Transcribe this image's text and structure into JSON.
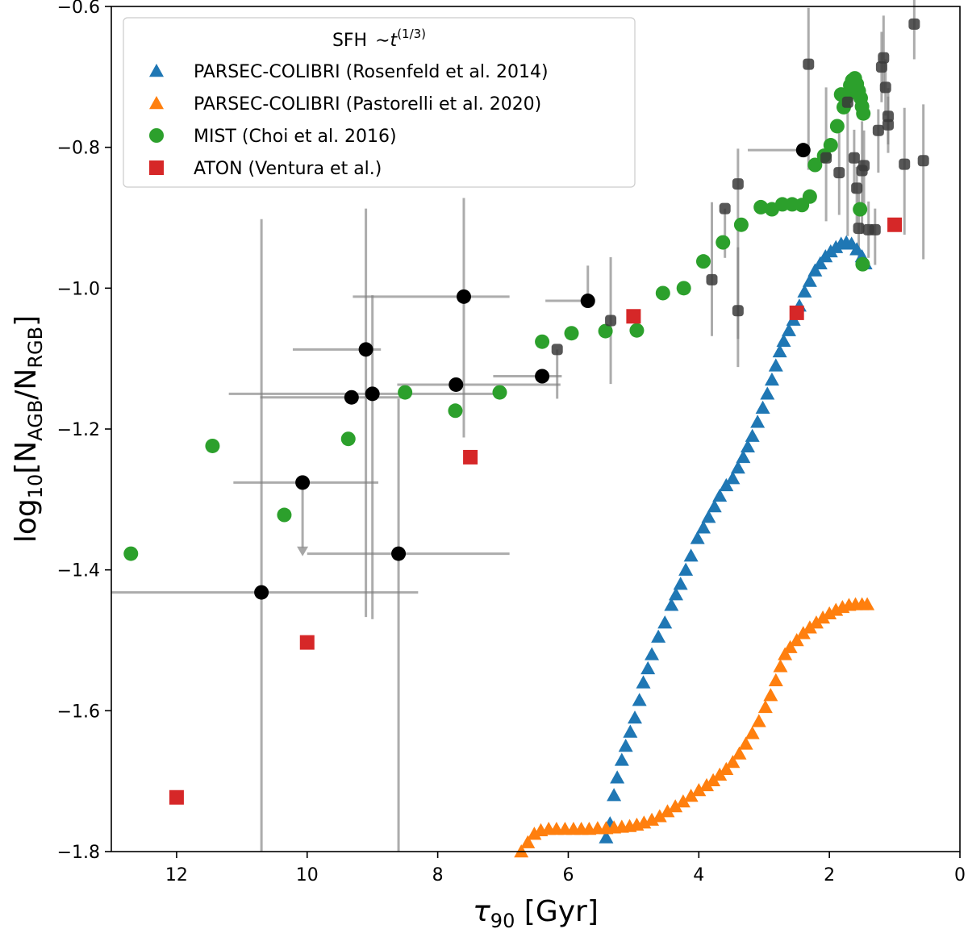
{
  "chart_data": {
    "type": "scatter",
    "title": "",
    "xlabel": "τ90 [Gyr]",
    "xlabel_main": "τ",
    "xlabel_sub": "90",
    "xlabel_unit": " [Gyr]",
    "ylabel": "log10[NAGB/NRGB]",
    "ylabel_main": "log",
    "ylabel_sub": "10",
    "ylabel_num": "N",
    "ylabel_num_sub": "AGB",
    "ylabel_den": "N",
    "ylabel_den_sub": "RGB",
    "xlim": [
      13,
      0
    ],
    "ylim": [
      -1.8,
      -0.6
    ],
    "x_ticks": [
      12,
      10,
      8,
      6,
      4,
      2,
      0
    ],
    "y_ticks": [
      -1.8,
      -1.6,
      -1.4,
      -1.2,
      -1.0,
      -0.8,
      -0.6
    ],
    "x_tick_labels": [
      "12",
      "10",
      "8",
      "6",
      "4",
      "2",
      "0"
    ],
    "y_tick_labels": [
      "−1.8",
      "−1.6",
      "−1.4",
      "−1.2",
      "−1.0",
      "−0.8",
      "−0.6"
    ],
    "grid": false,
    "legend": {
      "placement": "top-left",
      "title_main": "SFH",
      "title_rest": "∼",
      "title_var": "t",
      "title_exp": "(1/3)",
      "entries": [
        {
          "label": "PARSEC-COLIBRI (Rosenfeld et al. 2014)",
          "marker": "triangle",
          "color": "#1f77b4"
        },
        {
          "label": "PARSEC-COLIBRI (Pastorelli et al. 2020)",
          "marker": "triangle",
          "color": "#ff7f0e"
        },
        {
          "label": "MIST (Choi et al. 2016)",
          "marker": "circle",
          "color": "#2ca02c"
        },
        {
          "label": "ATON (Ventura et al.)",
          "marker": "square",
          "color": "#d62728"
        }
      ]
    },
    "series": [
      {
        "name": "PARSEC-COLIBRI (Rosenfeld et al. 2014)",
        "marker": "triangle",
        "color": "#1f77b4",
        "points": [
          [
            5.42,
            -1.78
          ],
          [
            5.36,
            -1.76
          ],
          [
            5.3,
            -1.72
          ],
          [
            5.25,
            -1.695
          ],
          [
            5.18,
            -1.67
          ],
          [
            5.12,
            -1.65
          ],
          [
            5.05,
            -1.63
          ],
          [
            4.98,
            -1.61
          ],
          [
            4.91,
            -1.585
          ],
          [
            4.85,
            -1.56
          ],
          [
            4.78,
            -1.54
          ],
          [
            4.72,
            -1.52
          ],
          [
            4.62,
            -1.495
          ],
          [
            4.52,
            -1.475
          ],
          [
            4.42,
            -1.45
          ],
          [
            4.35,
            -1.435
          ],
          [
            4.28,
            -1.42
          ],
          [
            4.2,
            -1.4
          ],
          [
            4.12,
            -1.38
          ],
          [
            4.02,
            -1.355
          ],
          [
            3.93,
            -1.34
          ],
          [
            3.85,
            -1.325
          ],
          [
            3.76,
            -1.31
          ],
          [
            3.68,
            -1.295
          ],
          [
            3.58,
            -1.28
          ],
          [
            3.48,
            -1.27
          ],
          [
            3.4,
            -1.255
          ],
          [
            3.32,
            -1.24
          ],
          [
            3.25,
            -1.225
          ],
          [
            3.18,
            -1.21
          ],
          [
            3.1,
            -1.19
          ],
          [
            3.02,
            -1.17
          ],
          [
            2.95,
            -1.15
          ],
          [
            2.88,
            -1.13
          ],
          [
            2.82,
            -1.11
          ],
          [
            2.76,
            -1.09
          ],
          [
            2.7,
            -1.075
          ],
          [
            2.62,
            -1.06
          ],
          [
            2.55,
            -1.045
          ],
          [
            2.46,
            -1.025
          ],
          [
            2.38,
            -1.005
          ],
          [
            2.3,
            -0.99
          ],
          [
            2.22,
            -0.975
          ],
          [
            2.14,
            -0.965
          ],
          [
            2.06,
            -0.955
          ],
          [
            1.98,
            -0.948
          ],
          [
            1.9,
            -0.942
          ],
          [
            1.82,
            -0.937
          ],
          [
            1.74,
            -0.935
          ],
          [
            1.66,
            -0.937
          ],
          [
            1.58,
            -0.945
          ],
          [
            1.5,
            -0.955
          ],
          [
            1.45,
            -0.965
          ]
        ]
      },
      {
        "name": "PARSEC-COLIBRI (Pastorelli et al. 2020)",
        "marker": "triangle",
        "color": "#ff7f0e",
        "points": [
          [
            6.72,
            -1.8
          ],
          [
            6.62,
            -1.787
          ],
          [
            6.52,
            -1.775
          ],
          [
            6.42,
            -1.77
          ],
          [
            6.3,
            -1.768
          ],
          [
            6.18,
            -1.768
          ],
          [
            6.05,
            -1.768
          ],
          [
            5.92,
            -1.768
          ],
          [
            5.8,
            -1.768
          ],
          [
            5.68,
            -1.768
          ],
          [
            5.55,
            -1.767
          ],
          [
            5.42,
            -1.767
          ],
          [
            5.3,
            -1.766
          ],
          [
            5.18,
            -1.765
          ],
          [
            5.06,
            -1.764
          ],
          [
            4.95,
            -1.762
          ],
          [
            4.84,
            -1.759
          ],
          [
            4.72,
            -1.755
          ],
          [
            4.6,
            -1.75
          ],
          [
            4.48,
            -1.743
          ],
          [
            4.36,
            -1.736
          ],
          [
            4.24,
            -1.729
          ],
          [
            4.12,
            -1.721
          ],
          [
            4.0,
            -1.713
          ],
          [
            3.88,
            -1.706
          ],
          [
            3.78,
            -1.699
          ],
          [
            3.68,
            -1.691
          ],
          [
            3.58,
            -1.683
          ],
          [
            3.48,
            -1.673
          ],
          [
            3.38,
            -1.661
          ],
          [
            3.28,
            -1.647
          ],
          [
            3.18,
            -1.632
          ],
          [
            3.08,
            -1.615
          ],
          [
            2.98,
            -1.595
          ],
          [
            2.9,
            -1.578
          ],
          [
            2.82,
            -1.557
          ],
          [
            2.75,
            -1.537
          ],
          [
            2.68,
            -1.52
          ],
          [
            2.6,
            -1.51
          ],
          [
            2.5,
            -1.5
          ],
          [
            2.4,
            -1.49
          ],
          [
            2.3,
            -1.482
          ],
          [
            2.2,
            -1.475
          ],
          [
            2.1,
            -1.468
          ],
          [
            2.0,
            -1.462
          ],
          [
            1.9,
            -1.457
          ],
          [
            1.8,
            -1.453
          ],
          [
            1.7,
            -1.45
          ],
          [
            1.6,
            -1.449
          ],
          [
            1.5,
            -1.449
          ],
          [
            1.42,
            -1.449
          ]
        ]
      },
      {
        "name": "MIST (Choi et al. 2016)",
        "marker": "circle",
        "color": "#2ca02c",
        "points": [
          [
            12.7,
            -1.377
          ],
          [
            11.45,
            -1.224
          ],
          [
            10.35,
            -1.322
          ],
          [
            9.37,
            -1.214
          ],
          [
            8.5,
            -1.148
          ],
          [
            7.73,
            -1.174
          ],
          [
            7.05,
            -1.148
          ],
          [
            6.4,
            -1.076
          ],
          [
            5.95,
            -1.064
          ],
          [
            5.43,
            -1.061
          ],
          [
            4.95,
            -1.06
          ],
          [
            4.55,
            -1.007
          ],
          [
            4.23,
            -1.0
          ],
          [
            3.93,
            -0.962
          ],
          [
            3.63,
            -0.935
          ],
          [
            3.35,
            -0.91
          ],
          [
            3.05,
            -0.885
          ],
          [
            2.88,
            -0.888
          ],
          [
            2.72,
            -0.881
          ],
          [
            2.57,
            -0.881
          ],
          [
            2.42,
            -0.882
          ],
          [
            2.3,
            -0.87
          ],
          [
            2.22,
            -0.825
          ],
          [
            2.08,
            -0.812
          ],
          [
            1.98,
            -0.797
          ],
          [
            1.88,
            -0.77
          ],
          [
            1.78,
            -0.743
          ],
          [
            1.72,
            -0.725
          ],
          [
            1.68,
            -0.712
          ],
          [
            1.65,
            -0.705
          ],
          [
            1.61,
            -0.702
          ],
          [
            1.58,
            -0.71
          ],
          [
            1.55,
            -0.72
          ],
          [
            1.52,
            -0.73
          ],
          [
            1.5,
            -0.742
          ],
          [
            1.48,
            -0.752
          ],
          [
            1.75,
            -0.73
          ],
          [
            1.82,
            -0.725
          ],
          [
            1.53,
            -0.888
          ],
          [
            1.49,
            -0.966
          ]
        ]
      },
      {
        "name": "ATON (Ventura et al.)",
        "marker": "square",
        "color": "#d62728",
        "points": [
          [
            12.0,
            -1.723
          ],
          [
            10.0,
            -1.503
          ],
          [
            7.5,
            -1.24
          ],
          [
            5.0,
            -1.04
          ],
          [
            2.5,
            -1.035
          ],
          [
            1.0,
            -0.91
          ]
        ]
      }
    ],
    "observations_black": [
      {
        "x": 10.7,
        "y": -1.432,
        "xerr": [
          2.3,
          2.4
        ],
        "yerr": [
          0.0,
          0.0
        ],
        "yerr_up": 0.53,
        "yerr_down": 0.37
      },
      {
        "x": 10.07,
        "y": -1.276,
        "xerr": [
          1.06,
          1.16
        ],
        "upper_limit": true
      },
      {
        "x": 9.32,
        "y": -1.155,
        "xerr": [
          1.4,
          0.85
        ]
      },
      {
        "x": 9.1,
        "y": -1.087,
        "xerr": [
          1.12,
          0.23
        ],
        "yerr_up": 0.2,
        "yerr_down": 0.38
      },
      {
        "x": 9.0,
        "y": -1.15,
        "xerr": [
          2.2,
          1.93
        ],
        "yerr_up": 0.14,
        "yerr_down": 0.32
      },
      {
        "x": 8.6,
        "y": -1.377,
        "xerr": [
          1.4,
          1.7
        ],
        "yerr_up": 0.22,
        "yerr_down": 0.43
      },
      {
        "x": 7.72,
        "y": -1.137,
        "xerr": [
          0.9,
          1.6
        ]
      },
      {
        "x": 7.6,
        "y": -1.012,
        "xerr": [
          1.7,
          0.7
        ],
        "yerr_up": 0.14,
        "yerr_down": 0.2
      },
      {
        "x": 6.4,
        "y": -1.125,
        "xerr": [
          0.75,
          0.3
        ]
      },
      {
        "x": 5.7,
        "y": -1.018,
        "xerr": [
          0.65,
          0.0
        ],
        "yerr_up": 0.05,
        "yerr_down": 0.0
      },
      {
        "x": 2.4,
        "y": -0.804,
        "xerr": [
          0.85,
          0.0
        ]
      }
    ],
    "observations_gray": [
      {
        "x": 6.17,
        "y": -1.087,
        "yerr_up": 0.0,
        "yerr_down": 0.07
      },
      {
        "x": 5.35,
        "y": -1.046,
        "yerr_up": 0.09,
        "yerr_down": 0.09
      },
      {
        "x": 3.8,
        "y": -0.988,
        "yerr_up": 0.11,
        "yerr_down": 0.08
      },
      {
        "x": 3.6,
        "y": -0.887,
        "yerr_up": 0.0,
        "yerr_down": 0.07
      },
      {
        "x": 3.4,
        "y": -0.852,
        "yerr_up": 0.05,
        "yerr_down": 0.22
      },
      {
        "x": 3.4,
        "y": -1.032,
        "yerr_up": 0.09,
        "yerr_down": 0.08
      },
      {
        "x": 2.32,
        "y": -0.682,
        "yerr_up": 0.08,
        "yerr_down": 0.15
      },
      {
        "x": 2.05,
        "y": -0.815,
        "yerr_up": 0.1,
        "yerr_down": 0.09
      },
      {
        "x": 1.85,
        "y": -0.836,
        "yerr_up": 0.07,
        "yerr_down": 0.06
      },
      {
        "x": 1.72,
        "y": -0.736,
        "yerr_up": 0.03,
        "yerr_down": 0.19
      },
      {
        "x": 1.62,
        "y": -0.815,
        "yerr_up": 0.04,
        "yerr_down": 0.05
      },
      {
        "x": 1.58,
        "y": -0.858,
        "yerr_up": 0.03,
        "yerr_down": 0.05
      },
      {
        "x": 1.55,
        "y": -0.915,
        "yerr_up": 0.05,
        "yerr_down": 0.04
      },
      {
        "x": 1.5,
        "y": -0.833,
        "yerr_up": 0.07,
        "yerr_down": 0.09
      },
      {
        "x": 1.47,
        "y": -0.826,
        "yerr_up": 0.05,
        "yerr_down": 0.06
      },
      {
        "x": 1.4,
        "y": -0.917,
        "yerr_up": 0.04,
        "yerr_down": 0.04
      },
      {
        "x": 1.3,
        "y": -0.917,
        "yerr_up": 0.03,
        "yerr_down": 0.05
      },
      {
        "x": 1.25,
        "y": -0.776,
        "yerr_up": 0.03,
        "yerr_down": 0.06
      },
      {
        "x": 1.2,
        "y": -0.686,
        "yerr_up": 0.05,
        "yerr_down": 0.05
      },
      {
        "x": 1.17,
        "y": -0.673,
        "yerr_up": 0.06,
        "yerr_down": 0.05
      },
      {
        "x": 1.14,
        "y": -0.715,
        "yerr_up": 0.04,
        "yerr_down": 0.04
      },
      {
        "x": 1.1,
        "y": -0.756,
        "yerr_up": 0.04,
        "yerr_down": 0.04
      },
      {
        "x": 1.1,
        "y": -0.768,
        "yerr_up": 0.04,
        "yerr_down": 0.04
      },
      {
        "x": 0.85,
        "y": -0.824,
        "yerr_up": 0.08,
        "yerr_down": 0.1
      },
      {
        "x": 0.7,
        "y": -0.625,
        "yerr_up": 0.06,
        "yerr_down": 0.05
      },
      {
        "x": 0.56,
        "y": -0.819,
        "yerr_up": 0.08,
        "yerr_down": 0.14
      }
    ]
  }
}
